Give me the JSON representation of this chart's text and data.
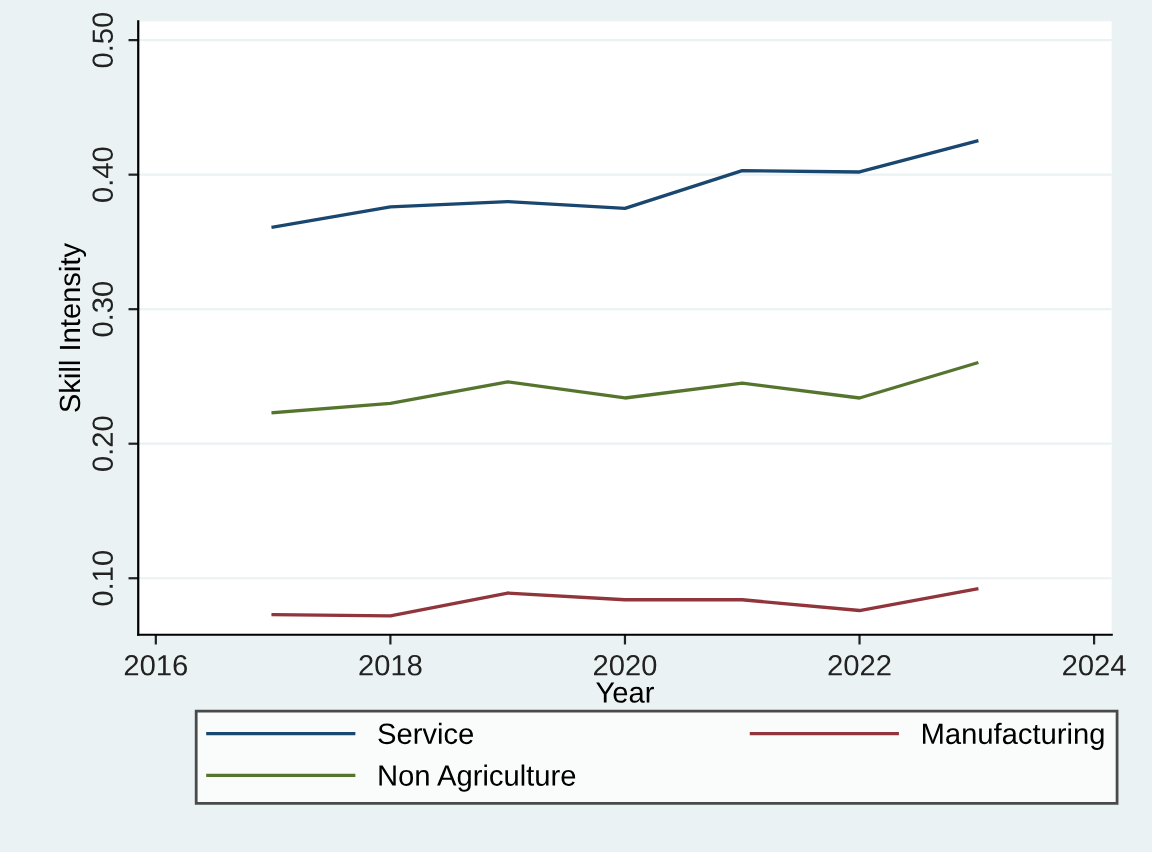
{
  "chart_data": {
    "type": "line",
    "xlabel": "Year",
    "ylabel": "Skill Intensity",
    "x": [
      2017,
      2018,
      2019,
      2020,
      2021,
      2022,
      2023
    ],
    "series": [
      {
        "name": "Service",
        "color": "#1a476f",
        "values": [
          0.361,
          0.376,
          0.38,
          0.375,
          0.403,
          0.402,
          0.425
        ]
      },
      {
        "name": "Manufacturing",
        "color": "#90353b",
        "values": [
          0.073,
          0.072,
          0.089,
          0.084,
          0.084,
          0.076,
          0.092
        ]
      },
      {
        "name": "Non Agriculture",
        "color": "#55752f",
        "values": [
          0.223,
          0.23,
          0.246,
          0.234,
          0.245,
          0.234,
          0.26
        ]
      }
    ],
    "xlim": [
      2015.85,
      2024.15
    ],
    "xticks": [
      2016,
      2018,
      2020,
      2022,
      2024
    ],
    "ylim": [
      0.058,
      0.514
    ],
    "yticks": [
      {
        "value": 0.1,
        "label": "0.10"
      },
      {
        "value": 0.2,
        "label": "0.20"
      },
      {
        "value": 0.3,
        "label": "0.30"
      },
      {
        "value": 0.4,
        "label": "0.40"
      },
      {
        "value": 0.5,
        "label": "0.50"
      }
    ],
    "grid": "y",
    "legend": "bottom",
    "marker": "none",
    "line_style": "solid"
  }
}
